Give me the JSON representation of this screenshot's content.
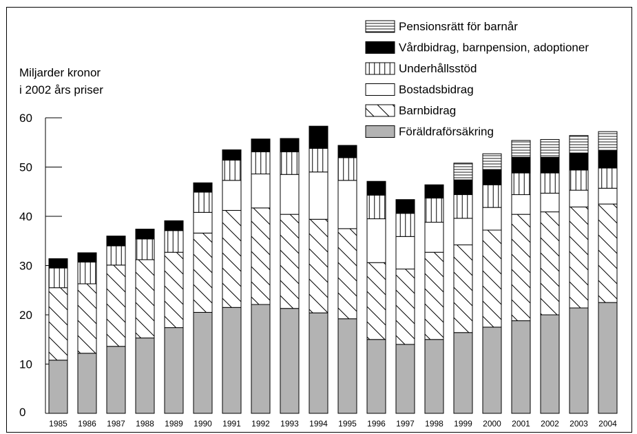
{
  "chart_data": {
    "type": "bar",
    "stacked": true,
    "ylabel_line1": "Miljarder kronor",
    "ylabel_line2": "i 2002 års priser",
    "ylim": [
      0,
      60
    ],
    "yticks": [
      0,
      10,
      20,
      30,
      40,
      50,
      60
    ],
    "categories": [
      "1985",
      "1986",
      "1987",
      "1988",
      "1989",
      "1990",
      "1991",
      "1992",
      "1993",
      "1994",
      "1995",
      "1996",
      "1997",
      "1998",
      "1999",
      "2000",
      "2001",
      "2002",
      "2003",
      "2004"
    ],
    "legend_position": "top-right",
    "series": [
      {
        "name": "Föräldraförsäkring",
        "pattern": "solid-gray",
        "color": "#b3b3b3",
        "values": [
          10.8,
          12.2,
          13.6,
          15.3,
          17.4,
          20.5,
          21.5,
          22.1,
          21.3,
          20.4,
          19.2,
          15.0,
          14.0,
          15.0,
          16.4,
          17.5,
          18.8,
          20.0,
          21.4,
          22.5
        ]
      },
      {
        "name": "Barnbidrag",
        "pattern": "diagonal",
        "color": "#000000",
        "values": [
          14.7,
          14.1,
          16.5,
          15.9,
          15.3,
          16.1,
          19.7,
          19.6,
          19.1,
          19.0,
          18.3,
          15.6,
          15.3,
          17.7,
          17.8,
          19.7,
          21.6,
          20.9,
          20.5,
          20.0
        ]
      },
      {
        "name": "Bostadsbidrag",
        "pattern": "white",
        "color": "#ffffff",
        "values": [
          0,
          0,
          0,
          0,
          0,
          4.2,
          6.1,
          6.9,
          8.1,
          9.6,
          9.8,
          8.9,
          6.6,
          6.1,
          5.4,
          4.6,
          4.0,
          3.8,
          3.4,
          3.2
        ]
      },
      {
        "name": "Underhållsstöd",
        "pattern": "vertical",
        "color": "#000000",
        "values": [
          4.0,
          4.4,
          3.9,
          4.2,
          4.4,
          4.1,
          4.1,
          4.5,
          4.6,
          4.8,
          4.6,
          4.8,
          4.7,
          4.9,
          4.8,
          4.6,
          4.4,
          4.1,
          4.1,
          4.1
        ]
      },
      {
        "name": "Vårdbidrag, barnpension, adoptioner",
        "pattern": "solid-black",
        "color": "#000000",
        "values": [
          1.9,
          1.9,
          2.0,
          2.0,
          2.0,
          1.9,
          2.1,
          2.6,
          2.7,
          4.5,
          2.5,
          2.8,
          2.8,
          2.7,
          3.0,
          3.0,
          3.2,
          3.2,
          3.4,
          3.5
        ]
      },
      {
        "name": "Pensionsrätt för barnår",
        "pattern": "horizontal",
        "color": "#000000",
        "values": [
          0,
          0,
          0,
          0,
          0,
          0,
          0,
          0,
          0,
          0,
          0,
          0,
          0,
          0,
          3.4,
          3.3,
          3.4,
          3.6,
          3.6,
          3.9
        ]
      }
    ]
  }
}
